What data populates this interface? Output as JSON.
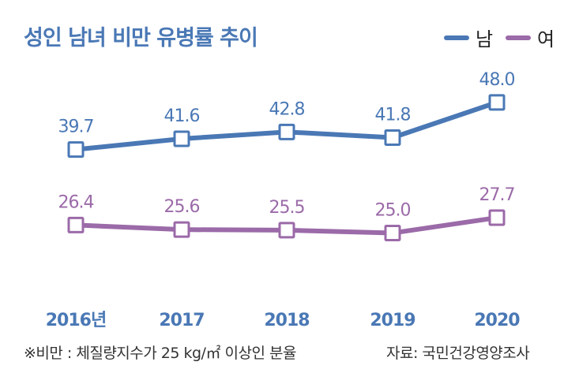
{
  "chart_data": {
    "type": "line",
    "title": "성인 남녀 비만 유병률 추이",
    "categories": [
      "2016년",
      "2017",
      "2018",
      "2019",
      "2020"
    ],
    "series": [
      {
        "name": "남",
        "color": "#4a78b5",
        "values": [
          39.7,
          41.6,
          42.8,
          41.8,
          48.0
        ],
        "labels": [
          "39.7",
          "41.6",
          "42.8",
          "41.8",
          "48.0"
        ]
      },
      {
        "name": "여",
        "color": "#9b6aa8",
        "values": [
          26.4,
          25.6,
          25.5,
          25.0,
          27.7
        ],
        "labels": [
          "26.4",
          "25.6",
          "25.5",
          "25.0",
          "27.7"
        ]
      }
    ],
    "xlabel": "",
    "ylabel": "",
    "grid": false,
    "legend": "top-right"
  },
  "footnote": {
    "definition": "※비만 : 체질량지수가 25 kg/㎡ 이상인 분율",
    "source": "자료: 국민건강영양조사"
  }
}
